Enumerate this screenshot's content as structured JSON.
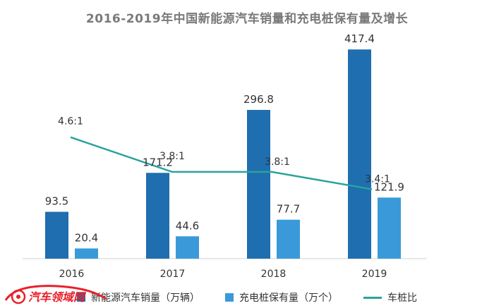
{
  "chart_data": {
    "type": "bar",
    "title": "2016-2019年中国新能源汽车销量和充电桩保有量及增长",
    "categories": [
      "2016",
      "2017",
      "2018",
      "2019"
    ],
    "ylim": [
      0,
      450
    ],
    "grid": false,
    "legend_position": "bottom",
    "series": [
      {
        "name": "新能源汽车销量（万辆）",
        "type": "bar",
        "color": "#1f6eb0",
        "values": [
          93.5,
          171.2,
          296.8,
          417.4
        ]
      },
      {
        "name": "充电桩保有量（万个）",
        "type": "bar",
        "color": "#3a9ad9",
        "values": [
          20.4,
          44.6,
          77.7,
          121.9
        ]
      },
      {
        "name": "车桩比",
        "type": "line",
        "color": "#2aa39b",
        "values": [
          4.6,
          3.8,
          3.8,
          3.4
        ],
        "labels": [
          "4.6:1",
          "3.8:1",
          "3.8:1",
          "3.4:1"
        ]
      }
    ]
  },
  "watermark": {
    "text": "汽车领域网",
    "color": "#e8202a",
    "icon": "car-logo-icon"
  }
}
